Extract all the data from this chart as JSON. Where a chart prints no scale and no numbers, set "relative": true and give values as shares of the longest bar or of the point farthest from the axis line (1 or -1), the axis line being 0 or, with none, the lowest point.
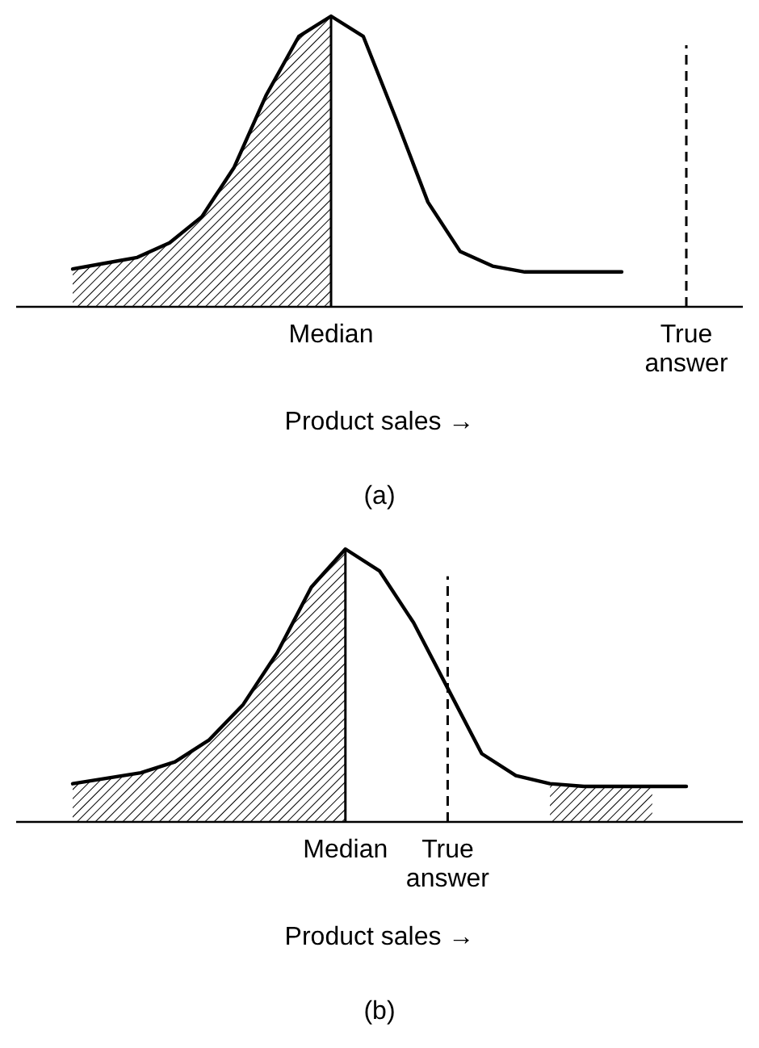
{
  "chart_data": [
    {
      "type": "line",
      "title": "(a)",
      "xlabel": "Product sales →",
      "relative": true,
      "marker": "none",
      "line_style": "solid",
      "categories": [
        null,
        null,
        null,
        null,
        null,
        null,
        null,
        null,
        "Median",
        null,
        null,
        null,
        null,
        null,
        null,
        null,
        null,
        null,
        null,
        "True answer"
      ],
      "series": [
        {
          "color": "#000000",
          "values": [
            0.13,
            0.15,
            0.17,
            0.22,
            0.31,
            0.48,
            0.73,
            0.93,
            1,
            0.93,
            0.65,
            0.36,
            0.19,
            0.14,
            0.12,
            0.12,
            0.12,
            0.12,
            null,
            null
          ]
        },
        {
          "type": "area",
          "color": "#000000",
          "values": [
            0.13,
            0.15,
            0.17,
            0.22,
            0.31,
            0.48,
            0.73,
            0.93,
            1,
            null,
            null,
            null,
            null,
            null,
            null,
            null,
            null,
            null,
            null,
            null
          ]
        }
      ],
      "ref_lines": [
        {
          "axis": "x",
          "value": "Median",
          "color": "#000000",
          "line_style": "solid"
        },
        {
          "axis": "x",
          "value": "True answer",
          "color": "#000000",
          "line_style": "dashed"
        }
      ]
    },
    {
      "type": "line",
      "title": "(b)",
      "xlabel": "Product sales →",
      "relative": true,
      "marker": "none",
      "line_style": "solid",
      "categories": [
        null,
        null,
        null,
        null,
        null,
        null,
        null,
        null,
        "Median",
        null,
        null,
        "True answer",
        null,
        null,
        null,
        null,
        null,
        null,
        null
      ],
      "series": [
        {
          "color": "#000000",
          "values": [
            0.14,
            0.16,
            0.18,
            0.22,
            0.3,
            0.43,
            0.62,
            0.86,
            1,
            0.92,
            0.73,
            0.49,
            0.25,
            0.17,
            0.14,
            0.13,
            0.13,
            0.13,
            0.13
          ]
        },
        {
          "type": "area",
          "color": "#000000",
          "values": [
            0.14,
            0.16,
            0.18,
            0.22,
            0.3,
            0.43,
            0.62,
            0.86,
            1,
            null,
            null,
            null,
            null,
            null,
            0.14,
            0.13,
            0.13,
            0.13,
            null
          ]
        }
      ],
      "ref_lines": [
        {
          "axis": "x",
          "value": "Median",
          "color": "#000000",
          "line_style": "solid"
        },
        {
          "axis": "x",
          "value": "True answer",
          "color": "#000000",
          "line_style": "dashed"
        }
      ]
    }
  ]
}
